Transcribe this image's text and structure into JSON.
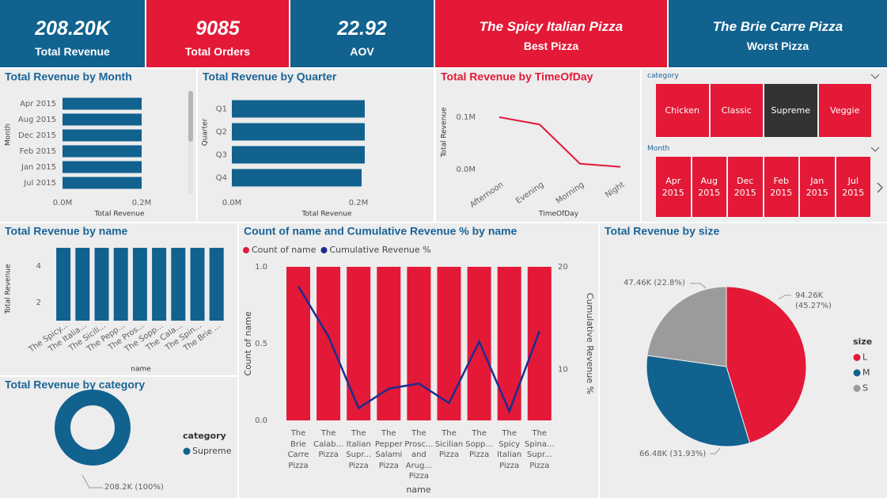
{
  "kpis": [
    {
      "value": "208.20K",
      "label": "Total Revenue",
      "color": "#11628f"
    },
    {
      "value": "9085",
      "label": "Total Orders",
      "color": "#e31937"
    },
    {
      "value": "22.92",
      "label": "AOV",
      "color": "#11628f"
    },
    {
      "value": "The Spicy Italian Pizza",
      "label": "Best Pizza",
      "color": "#e31937"
    },
    {
      "value": "The Brie Carre Pizza",
      "label": "Worst Pizza",
      "color": "#11628f"
    }
  ],
  "slicers": [
    {
      "title": "category",
      "items": [
        "Chicken",
        "Classic",
        "Supreme",
        "Veggie"
      ],
      "selected": "Supreme"
    },
    {
      "title": "Month",
      "items": [
        "Apr 2015",
        "Aug 2015",
        "Dec 2015",
        "Feb 2015",
        "Jan 2015",
        "Jul 2015"
      ]
    }
  ],
  "chart_data": [
    {
      "type": "bar",
      "horizontal": true,
      "title": "Total Revenue by Month",
      "categories": [
        "Apr 2015",
        "Aug 2015",
        "Dec 2015",
        "Feb 2015",
        "Jan 2015",
        "Jul 2015"
      ],
      "values": [
        0.2,
        0.2,
        0.2,
        0.2,
        0.2,
        0.2
      ],
      "color": "#11628f",
      "xlim": [
        0,
        0.2
      ],
      "xticks": [
        {
          "value": 0,
          "label": "0.0M"
        },
        {
          "value": 0.2,
          "label": "0.2M"
        }
      ],
      "x_label": "Total Revenue",
      "y_label": "Month"
    },
    {
      "type": "bar",
      "horizontal": true,
      "title": "Total Revenue by Quarter",
      "categories": [
        "Q1",
        "Q2",
        "Q3",
        "Q4"
      ],
      "values": [
        0.21,
        0.21,
        0.21,
        0.205
      ],
      "color": "#11628f",
      "xlim": [
        0,
        0.2
      ],
      "xticks": [
        {
          "value": 0,
          "label": "0.0M"
        },
        {
          "value": 0.2,
          "label": "0.2M"
        }
      ],
      "x_label": "Total Revenue",
      "y_label": "Quarter"
    },
    {
      "type": "line",
      "title": "Total Revenue by TimeOfDay",
      "categories": [
        "Afternoon",
        "Evening",
        "Morning",
        "Night"
      ],
      "values": [
        0.1,
        0.086,
        0.011,
        0.005
      ],
      "color": "#e31937",
      "ylim": [
        0,
        0.1
      ],
      "yticks": [
        {
          "value": 0,
          "label": "0.0M"
        },
        {
          "value": 0.1,
          "label": "0.1M"
        }
      ],
      "x_label": "TimeOfDay",
      "y_label": "Total Revenue"
    },
    {
      "type": "bar",
      "title": "Total Revenue by name",
      "categories": [
        "The Spicy...",
        "The Italia...",
        "The Sicili...",
        "The Pepp...",
        "The Pros...",
        "The Sopp...",
        "The Cala...",
        "The Spin...",
        "The Brie ..."
      ],
      "values": [
        5,
        5,
        5,
        5,
        5,
        5,
        5,
        5,
        5
      ],
      "color": "#11628f",
      "ylim": [
        1,
        5
      ],
      "yticks": [
        2,
        4
      ],
      "x_label": "name",
      "y_label": "Total Revenue"
    },
    {
      "type": "combo",
      "title": "Count of name and Cumulative Revenue % by name",
      "categories": [
        "The Brie Carre Pizza",
        "The Calab... Pizza",
        "The Italian Supr... Pizza",
        "The Pepper Salami Pizza",
        "The Prosc... and Arug... Pizza",
        "The Sicilian Pizza",
        "The Sopp... Pizza",
        "The Spicy Italian Pizza",
        "The Spina... Supr... Pizza"
      ],
      "series": [
        {
          "name": "Count of name",
          "color": "#e31937",
          "values": [
            1,
            1,
            1,
            1,
            1,
            1,
            1,
            1,
            1
          ]
        },
        {
          "name": "Cumulative Revenue %",
          "color": "#1c2d8f",
          "values": [
            18.1,
            13.2,
            6.2,
            8.1,
            8.6,
            6.7,
            12.7,
            5.9,
            13.7
          ],
          "axis": "y2"
        }
      ],
      "ylim": [
        0,
        1
      ],
      "yticks": [
        {
          "value": 0,
          "label": "0.0"
        },
        0.5,
        {
          "value": 1,
          "label": "1.0"
        }
      ],
      "y2lim": [
        5,
        20
      ],
      "y2ticks": [
        10,
        20
      ],
      "x_label": "name",
      "y_label": "Count of name",
      "y2_label": "Cumulative Revenue %"
    },
    {
      "type": "pie",
      "title": "Total Revenue by size",
      "categories": [
        "L",
        "M",
        "S"
      ],
      "values": [
        94.26,
        66.48,
        47.46
      ],
      "value_labels": [
        "94.26K (45.27%)",
        "66.48K (31.93%)",
        "47.46K (22.8%)"
      ],
      "colors": [
        "#e31937",
        "#11628f",
        "#9b9b9b"
      ],
      "legend_title": "size"
    },
    {
      "type": "donut",
      "title": "Total Revenue by category",
      "categories": [
        "Supreme"
      ],
      "values": [
        208.2
      ],
      "value_labels": [
        "208.2K (100%)"
      ],
      "colors": [
        "#11628f"
      ],
      "legend_title": "category"
    }
  ]
}
